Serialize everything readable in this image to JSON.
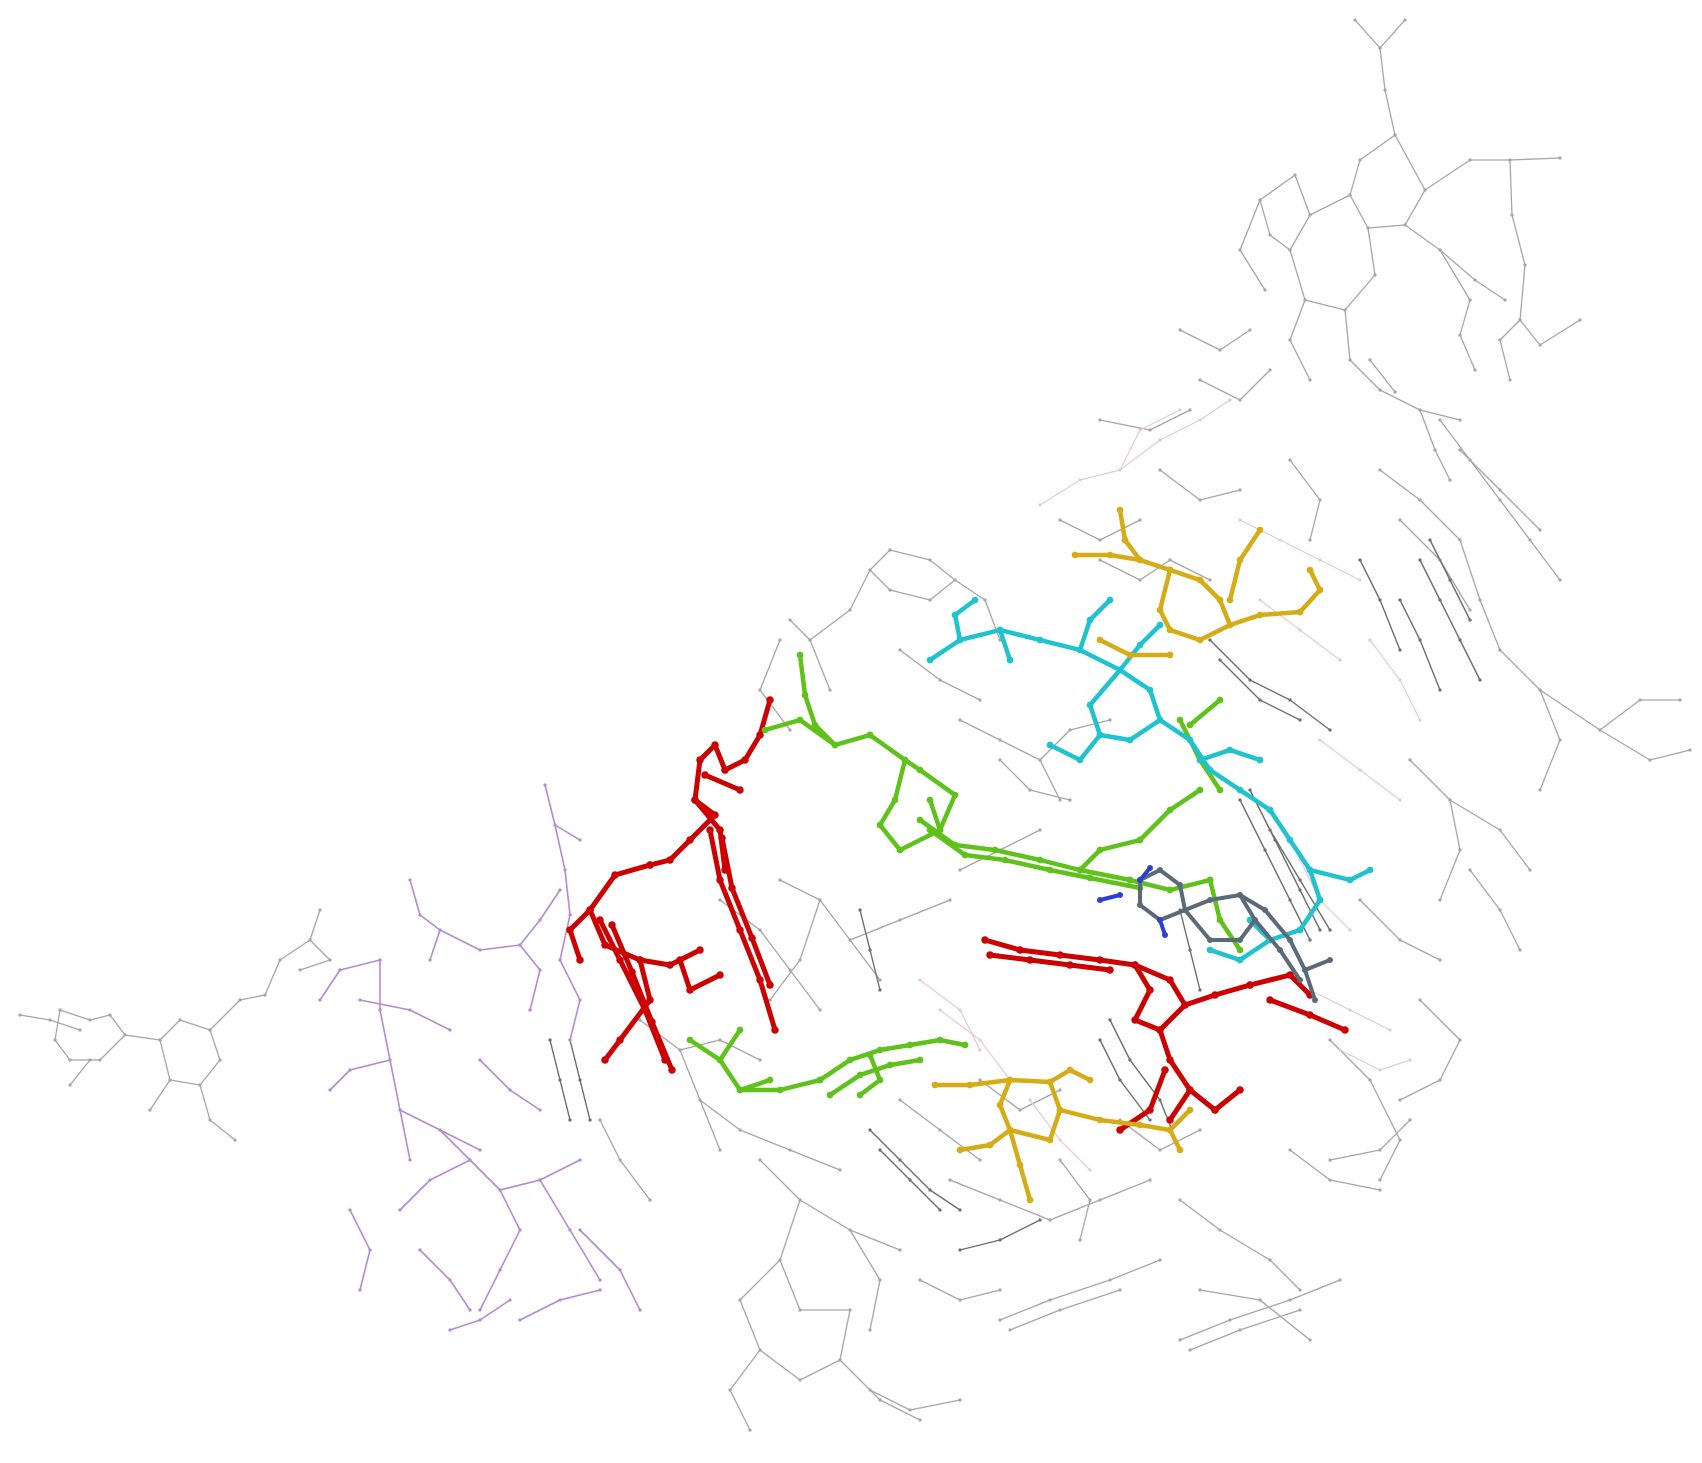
{
  "scene": {
    "background": "#ffffff",
    "colors": {
      "context_gray": "#a6a6a6",
      "dark_gray": "#6e6e6e",
      "light_pink": "#e6c9cf",
      "purple": "#b58ad0",
      "red": "#cc0000",
      "green": "#5fc21a",
      "cyan": "#1fc3cf",
      "yellow": "#d6ac16",
      "blue": "#2b3fd6",
      "slate": "#5a6a78"
    },
    "fragments": [
      {
        "name": "context-upper-right",
        "color": "context_gray",
        "weight": 1.3
      },
      {
        "name": "context-right-middle",
        "color": "context_gray",
        "weight": 1.3
      },
      {
        "name": "context-center",
        "color": "context_gray",
        "weight": 1.3
      },
      {
        "name": "context-lower",
        "color": "context_gray",
        "weight": 1.3
      },
      {
        "name": "context-left",
        "color": "context_gray",
        "weight": 1.3
      },
      {
        "name": "context-dense-stack",
        "color": "dark_gray",
        "weight": 1.4
      },
      {
        "name": "context-pink",
        "color": "light_pink",
        "weight": 1.2
      },
      {
        "name": "context-purple",
        "color": "purple",
        "weight": 1.6
      },
      {
        "name": "highlight-red-left",
        "color": "red",
        "weight": 5
      },
      {
        "name": "highlight-red-right",
        "color": "red",
        "weight": 5
      },
      {
        "name": "highlight-green",
        "color": "green",
        "weight": 4.5
      },
      {
        "name": "highlight-cyan",
        "color": "cyan",
        "weight": 4.5
      },
      {
        "name": "highlight-yellow",
        "color": "yellow",
        "weight": 4.5
      },
      {
        "name": "highlight-base",
        "color": "slate",
        "weight": 4
      },
      {
        "name": "highlight-nitrogen",
        "color": "blue",
        "weight": 4
      }
    ]
  }
}
